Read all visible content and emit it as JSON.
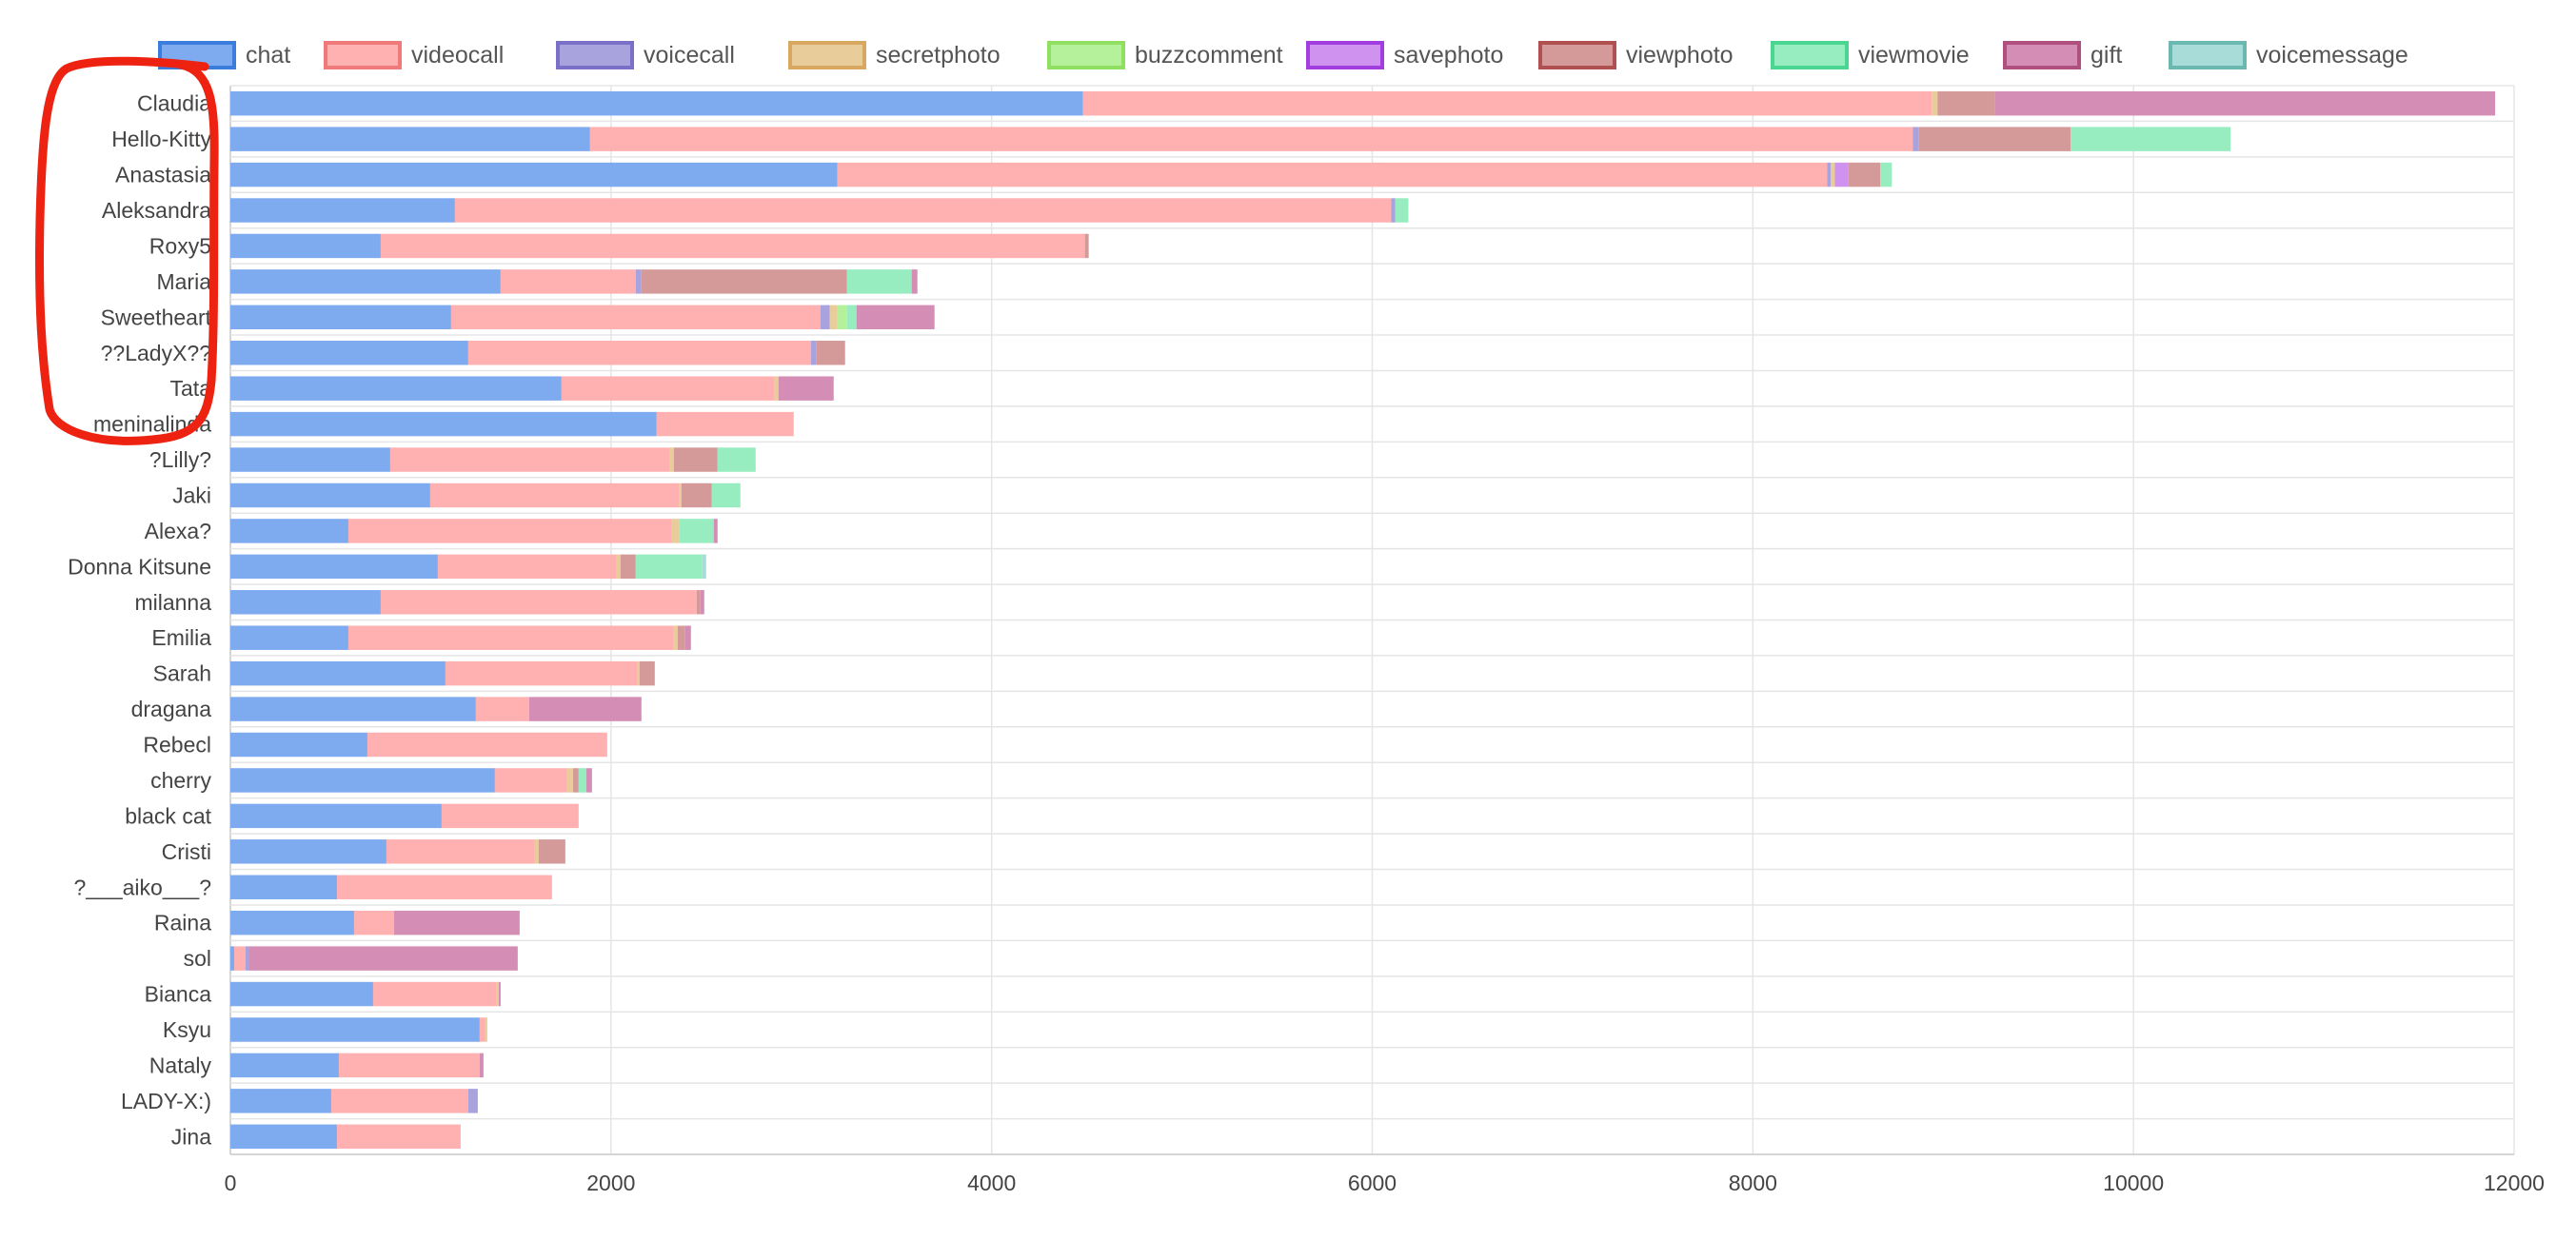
{
  "chart_data": {
    "type": "bar",
    "orientation": "horizontal",
    "stacked": true,
    "title": "",
    "xlabel": "",
    "ylabel": "",
    "xlim": [
      0,
      12000
    ],
    "xticks": [
      0,
      2000,
      4000,
      6000,
      8000,
      10000,
      12000
    ],
    "grid": true,
    "legend_position": "top",
    "categories": [
      "Claudia",
      "Hello-Kitty",
      "Anastasia",
      "Aleksandra",
      "Roxy5",
      "Maria",
      "Sweetheart",
      "??LadyX??",
      "Tata",
      "meninalinda",
      "?Lilly?",
      "Jaki",
      "Alexa?",
      "Donna Kitsune",
      "milanna",
      "Emilia",
      "Sarah",
      "dragana",
      "Rebecl",
      "cherry",
      "black cat",
      "Cristi",
      "?___aiko___?",
      "Raina",
      "sol",
      "Bianca",
      "Ksyu",
      "Nataly",
      "LADY-X:)",
      "Jina"
    ],
    "series": [
      {
        "name": "chat",
        "color": "#7eaaf0",
        "border": "#3b7ddd",
        "values": [
          4480,
          1890,
          3190,
          1180,
          790,
          1420,
          1160,
          1250,
          1740,
          2240,
          840,
          1050,
          620,
          1090,
          790,
          620,
          1130,
          1290,
          720,
          1390,
          1110,
          820,
          560,
          650,
          20,
          750,
          1310,
          570,
          530,
          560
        ]
      },
      {
        "name": "videocall",
        "color": "#ffb0b0",
        "border": "#f07a7a",
        "values": [
          4460,
          6950,
          5200,
          4920,
          3700,
          710,
          1940,
          1800,
          1120,
          720,
          1470,
          1310,
          1700,
          940,
          1660,
          1710,
          1010,
          280,
          1260,
          380,
          720,
          780,
          1130,
          210,
          60,
          650,
          30,
          740,
          720,
          650
        ]
      },
      {
        "name": "voicecall",
        "color": "#a8a3dc",
        "border": "#7a70c8",
        "values": [
          0,
          30,
          20,
          20,
          0,
          30,
          50,
          30,
          0,
          0,
          0,
          0,
          0,
          0,
          0,
          0,
          0,
          0,
          0,
          0,
          0,
          0,
          0,
          0,
          20,
          0,
          0,
          0,
          50,
          0
        ]
      },
      {
        "name": "secretphoto",
        "color": "#e8cc9a",
        "border": "#d8a860",
        "values": [
          30,
          0,
          20,
          0,
          0,
          0,
          40,
          0,
          20,
          0,
          20,
          10,
          40,
          20,
          0,
          20,
          10,
          0,
          0,
          30,
          0,
          20,
          0,
          0,
          0,
          10,
          10,
          0,
          0,
          0
        ]
      },
      {
        "name": "buzzcomment",
        "color": "#b5f09a",
        "border": "#8fe060",
        "values": [
          0,
          0,
          0,
          0,
          0,
          0,
          50,
          0,
          0,
          0,
          0,
          0,
          0,
          0,
          0,
          0,
          0,
          0,
          0,
          0,
          0,
          0,
          0,
          0,
          0,
          0,
          0,
          0,
          0,
          0
        ]
      },
      {
        "name": "savephoto",
        "color": "#cf93ef",
        "border": "#a23de0",
        "values": [
          0,
          0,
          70,
          0,
          0,
          0,
          0,
          0,
          0,
          0,
          0,
          0,
          0,
          0,
          0,
          0,
          0,
          0,
          0,
          0,
          0,
          0,
          0,
          0,
          0,
          0,
          0,
          0,
          0,
          0
        ]
      },
      {
        "name": "viewphoto",
        "color": "#d49a9a",
        "border": "#b05050",
        "values": [
          300,
          800,
          170,
          0,
          20,
          1080,
          0,
          150,
          0,
          0,
          230,
          160,
          0,
          80,
          20,
          40,
          80,
          0,
          0,
          30,
          0,
          140,
          0,
          0,
          0,
          0,
          0,
          0,
          0,
          0
        ]
      },
      {
        "name": "viewmovie",
        "color": "#97ecc0",
        "border": "#4ad690",
        "values": [
          0,
          840,
          60,
          70,
          0,
          340,
          50,
          0,
          0,
          0,
          200,
          150,
          180,
          350,
          0,
          0,
          0,
          0,
          0,
          40,
          0,
          0,
          0,
          0,
          0,
          0,
          0,
          0,
          0,
          0
        ]
      },
      {
        "name": "gift",
        "color": "#d48db5",
        "border": "#b0507f",
        "values": [
          2630,
          0,
          0,
          0,
          0,
          30,
          410,
          0,
          290,
          0,
          0,
          0,
          20,
          0,
          20,
          30,
          0,
          590,
          0,
          30,
          0,
          0,
          0,
          660,
          1410,
          10,
          0,
          20,
          0,
          0
        ]
      },
      {
        "name": "voicemessage",
        "color": "#a8dcd8",
        "border": "#6ab8b0",
        "values": [
          0,
          0,
          0,
          0,
          0,
          0,
          0,
          0,
          0,
          0,
          0,
          0,
          0,
          20,
          0,
          0,
          0,
          0,
          0,
          0,
          0,
          0,
          0,
          0,
          0,
          0,
          0,
          0,
          0,
          0
        ]
      }
    ]
  }
}
